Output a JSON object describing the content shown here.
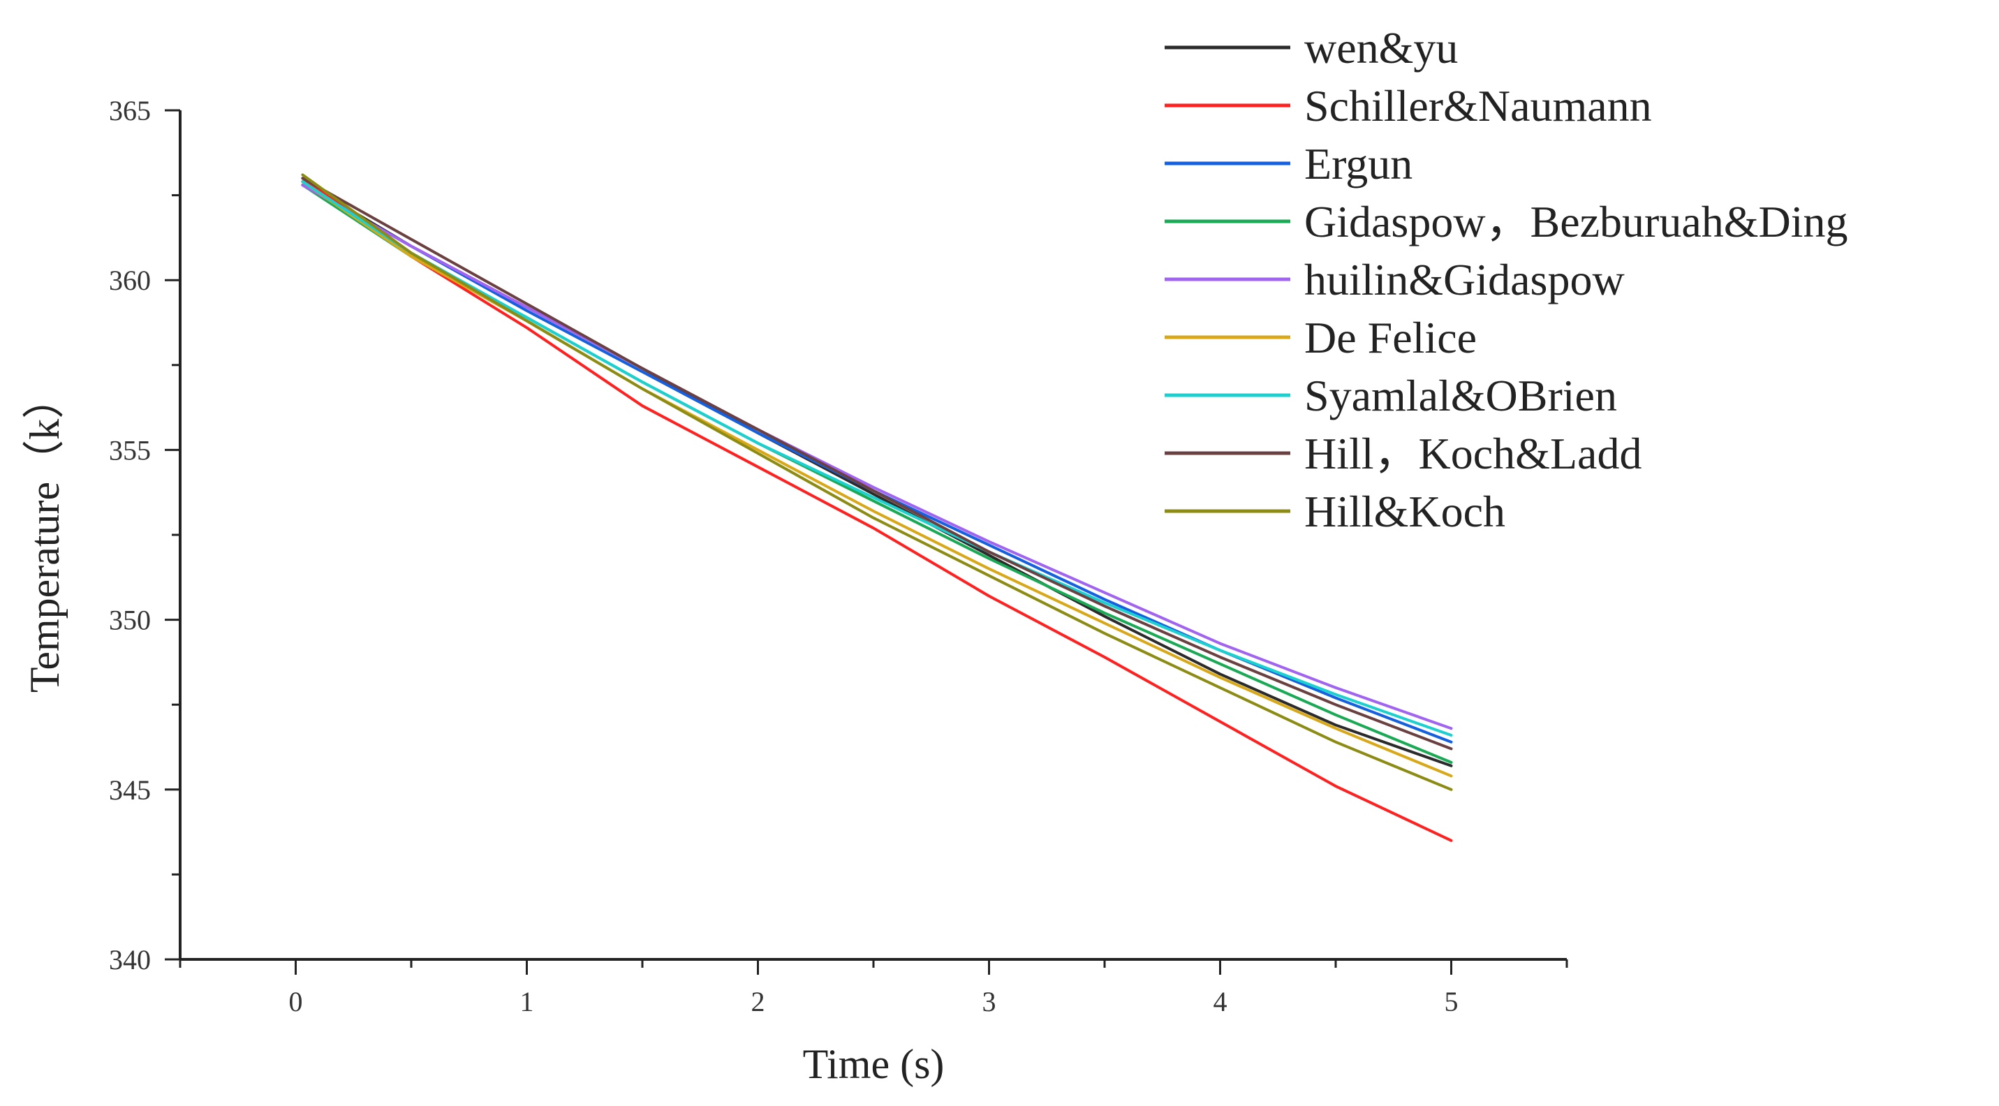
{
  "chart_data": {
    "type": "line",
    "title": "",
    "xlabel": "Time (s)",
    "ylabel": "Temperature（k）",
    "xlim": [
      -0.5,
      5.5
    ],
    "ylim": [
      340,
      365
    ],
    "xticks": [
      0,
      1,
      2,
      3,
      4,
      5
    ],
    "yticks": [
      340,
      345,
      350,
      355,
      360,
      365
    ],
    "xtick_labels": [
      "0",
      "1",
      "2",
      "3",
      "4",
      "5"
    ],
    "ytick_labels": [
      "340",
      "345",
      "350",
      "355",
      "360",
      "365"
    ],
    "grid": false,
    "legend_position": "top-right",
    "x": [
      0.03,
      0.5,
      1,
      1.5,
      2,
      2.5,
      3,
      3.5,
      4,
      4.5,
      5
    ],
    "series": [
      {
        "name": "wen&yu",
        "color": "#2b2b2b",
        "values": [
          362.9,
          361.0,
          359.2,
          357.4,
          355.5,
          353.7,
          351.9,
          350.1,
          348.4,
          346.9,
          345.7
        ]
      },
      {
        "name": "Schiller&Naumann",
        "color": "#ff2020",
        "values": [
          363.0,
          360.7,
          358.6,
          356.3,
          354.5,
          352.7,
          350.7,
          348.9,
          347.0,
          345.1,
          343.5
        ]
      },
      {
        "name": "Ergun",
        "color": "#1560e0",
        "values": [
          362.8,
          361.0,
          359.1,
          357.3,
          355.5,
          353.8,
          352.2,
          350.6,
          349.1,
          347.7,
          346.4
        ]
      },
      {
        "name": "Gidaspow，Bezburuah&Ding",
        "color": "#1aaa55",
        "values": [
          362.8,
          360.7,
          358.9,
          357.0,
          355.2,
          353.5,
          351.8,
          350.2,
          348.7,
          347.2,
          345.8
        ]
      },
      {
        "name": "huilin&Gidaspow",
        "color": "#a064f0",
        "values": [
          362.8,
          361.0,
          359.2,
          357.4,
          355.6,
          353.9,
          352.3,
          350.8,
          349.3,
          348.0,
          346.8
        ]
      },
      {
        "name": "De Felice",
        "color": "#d8a818",
        "values": [
          362.9,
          360.7,
          358.8,
          356.8,
          355.0,
          353.2,
          351.5,
          349.9,
          348.3,
          346.8,
          345.4
        ]
      },
      {
        "name": "Syamlal&OBrien",
        "color": "#1cd0d0",
        "values": [
          362.9,
          360.8,
          358.9,
          357.0,
          355.2,
          353.6,
          352.0,
          350.5,
          349.1,
          347.8,
          346.6
        ]
      },
      {
        "name": "Hill，Koch&Ladd",
        "color": "#6a4040",
        "values": [
          363.0,
          361.2,
          359.3,
          357.4,
          355.6,
          353.8,
          352.0,
          350.4,
          348.9,
          347.5,
          346.2
        ]
      },
      {
        "name": "Hill&Koch",
        "color": "#8c8c14",
        "values": [
          363.1,
          360.8,
          358.8,
          356.8,
          354.9,
          353.0,
          351.3,
          349.6,
          348.0,
          346.4,
          345.0
        ]
      }
    ]
  }
}
